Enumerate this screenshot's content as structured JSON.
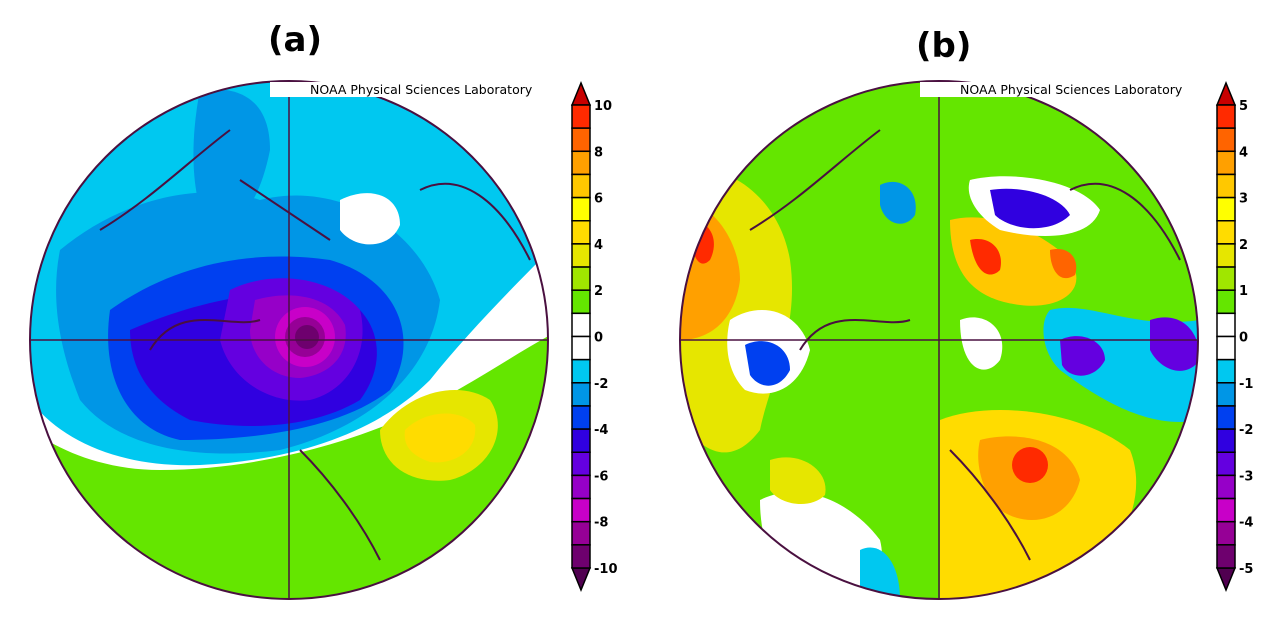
{
  "panels": [
    {
      "label": "(a)",
      "credit": "NOAA Physical Sciences Laboratory",
      "colorbar": {
        "ticks": [
          "10",
          "8",
          "6",
          "4",
          "2",
          "0",
          "-2",
          "-4",
          "-6",
          "-8",
          "-10"
        ],
        "range": [
          -10,
          10
        ],
        "step": 1
      }
    },
    {
      "label": "(b)",
      "credit": "NOAA Physical Sciences Laboratory",
      "colorbar": {
        "ticks": [
          "5",
          "4",
          "3",
          "2",
          "1",
          "0",
          "-1",
          "-2",
          "-3",
          "-4",
          "-5"
        ],
        "range": [
          -5,
          5
        ],
        "step": 0.5
      }
    }
  ],
  "colors": {
    "scale_top_to_bottom": [
      "#ff2a00",
      "#ff6400",
      "#ffa000",
      "#ffc800",
      "#ffff00",
      "#ffdc00",
      "#e6e600",
      "#a0e600",
      "#64e600",
      "#ffffff",
      "#ffffff",
      "#00c8f0",
      "#0096e6",
      "#0040f0",
      "#3000e0",
      "#6400e0",
      "#9600c8",
      "#c800c8",
      "#960096",
      "#6e006e"
    ],
    "arrow_high": "#c80000",
    "arrow_low": "#500050",
    "coast": "#4a1040"
  }
}
